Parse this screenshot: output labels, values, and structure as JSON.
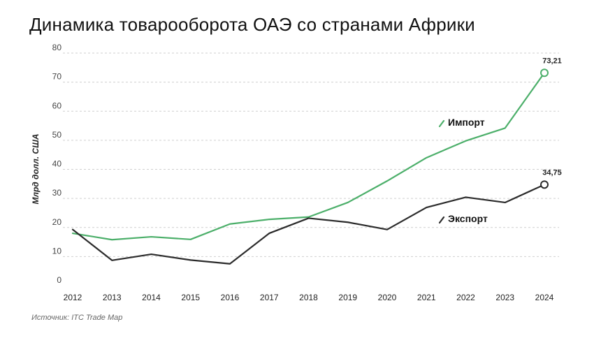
{
  "title": "Динамика товарооборота ОАЭ со странами Африки",
  "source": "Источник: ITC Trade Map",
  "colors": {
    "import": "#4caf6a",
    "export": "#2b2b2b",
    "grid": "#cfcfcf"
  },
  "chart_data": {
    "type": "line",
    "title": "Динамика товарооборота ОАЭ со странами Африки",
    "xlabel": "",
    "ylabel": "Млрд долл. США",
    "ylim": [
      0,
      80
    ],
    "yticks": [
      0,
      10,
      20,
      30,
      40,
      50,
      60,
      70,
      80
    ],
    "grid": true,
    "categories": [
      "2012",
      "2013",
      "2014",
      "2015",
      "2016",
      "2017",
      "2018",
      "2019",
      "2020",
      "2021",
      "2022",
      "2023",
      "2024"
    ],
    "series": [
      {
        "name": "Импорт",
        "color": "#4caf6a",
        "values": [
          18.0,
          15.8,
          16.8,
          15.9,
          21.2,
          22.8,
          23.6,
          28.6,
          36.0,
          44.0,
          49.8,
          54.2,
          73.21
        ],
        "end_label": "73,21"
      },
      {
        "name": "Экспорт",
        "color": "#2b2b2b",
        "values": [
          19.3,
          8.7,
          10.8,
          8.8,
          7.5,
          18.0,
          23.2,
          21.8,
          19.3,
          26.9,
          30.4,
          28.6,
          34.75
        ],
        "end_label": "34,75"
      }
    ]
  }
}
